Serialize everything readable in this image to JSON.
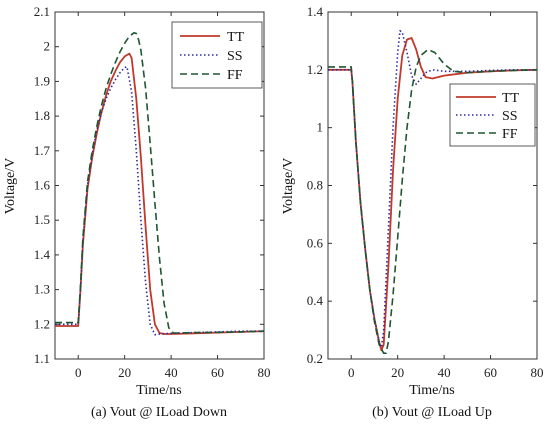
{
  "chart_data": [
    {
      "type": "line",
      "caption": "(a) Vout @ ILoad Down",
      "xlabel": "Time/ns",
      "ylabel": "Voltage/V",
      "xlim": [
        -10,
        80
      ],
      "ylim": [
        1.1,
        2.1
      ],
      "xticks": [
        0,
        20,
        40,
        60,
        80
      ],
      "yticks": [
        1.1,
        1.2,
        1.3,
        1.4,
        1.5,
        1.6,
        1.7,
        1.8,
        1.9,
        2,
        2.1
      ],
      "ytick_labels": [
        "1.1",
        "1.2",
        "1.3",
        "1.4",
        "1.5",
        "1.6",
        "1.7",
        "1.8",
        "1.9",
        "2",
        "2.1"
      ],
      "grid": false,
      "legend": {
        "position": "top-right"
      },
      "series": [
        {
          "name": "TT",
          "color": "#c0392b",
          "style": "solid",
          "x": [
            -10,
            0,
            1,
            2,
            4,
            6,
            8,
            10,
            12,
            14,
            16,
            18,
            20,
            22,
            23,
            25,
            27,
            29,
            31,
            33,
            35,
            37,
            40,
            50,
            60,
            70,
            80
          ],
          "y": [
            1.195,
            1.195,
            1.3,
            1.43,
            1.59,
            1.68,
            1.75,
            1.81,
            1.86,
            1.9,
            1.93,
            1.955,
            1.972,
            1.98,
            1.968,
            1.85,
            1.68,
            1.48,
            1.3,
            1.2,
            1.175,
            1.172,
            1.172,
            1.174,
            1.176,
            1.178,
            1.18
          ]
        },
        {
          "name": "SS",
          "color": "#2c2c9c",
          "style": "dotted",
          "x": [
            -10,
            0,
            1,
            2,
            4,
            6,
            8,
            10,
            12,
            14,
            16,
            18,
            20,
            21,
            23,
            25,
            27,
            29,
            31,
            33,
            35,
            40,
            50,
            60,
            70,
            80
          ],
          "y": [
            1.2,
            1.2,
            1.3,
            1.44,
            1.6,
            1.69,
            1.76,
            1.81,
            1.85,
            1.88,
            1.905,
            1.925,
            1.94,
            1.942,
            1.87,
            1.7,
            1.5,
            1.32,
            1.2,
            1.17,
            1.172,
            1.174,
            1.176,
            1.178,
            1.18,
            1.18
          ]
        },
        {
          "name": "FF",
          "color": "#1e5631",
          "style": "dashed",
          "x": [
            -10,
            0,
            1,
            2,
            4,
            6,
            8,
            10,
            12,
            14,
            16,
            18,
            20,
            22,
            24,
            25,
            26,
            27,
            29,
            31,
            33,
            35,
            37,
            39,
            41,
            43,
            50,
            60,
            70,
            80
          ],
          "y": [
            1.205,
            1.205,
            1.31,
            1.45,
            1.61,
            1.7,
            1.77,
            1.83,
            1.88,
            1.92,
            1.955,
            1.985,
            2.01,
            2.03,
            2.04,
            2.038,
            2.02,
            1.99,
            1.88,
            1.72,
            1.55,
            1.39,
            1.26,
            1.19,
            1.175,
            1.175,
            1.176,
            1.177,
            1.178,
            1.18
          ]
        }
      ]
    },
    {
      "type": "line",
      "caption": "(b) Vout @ ILoad Up",
      "xlabel": "Time/ns",
      "ylabel": "Voltage/V",
      "xlim": [
        -10,
        80
      ],
      "ylim": [
        0.2,
        1.4
      ],
      "xticks": [
        0,
        20,
        40,
        60,
        80
      ],
      "yticks": [
        0.2,
        0.4,
        0.6,
        0.8,
        1,
        1.2,
        1.4
      ],
      "ytick_labels": [
        "0.2",
        "0.4",
        "0.6",
        "0.8",
        "1",
        "1.2",
        "1.4"
      ],
      "grid": false,
      "legend": {
        "position": "right"
      },
      "series": [
        {
          "name": "TT",
          "color": "#c0392b",
          "style": "solid",
          "x": [
            -10,
            0,
            0.5,
            2,
            4,
            6,
            8,
            10,
            12,
            13,
            14,
            16,
            18,
            20,
            22,
            24,
            26,
            28,
            30,
            32,
            35,
            40,
            50,
            60,
            70,
            80
          ],
          "y": [
            1.2,
            1.2,
            1.16,
            0.95,
            0.74,
            0.58,
            0.44,
            0.34,
            0.26,
            0.23,
            0.25,
            0.52,
            0.85,
            1.1,
            1.25,
            1.305,
            1.31,
            1.27,
            1.21,
            1.175,
            1.17,
            1.18,
            1.19,
            1.195,
            1.198,
            1.2
          ]
        },
        {
          "name": "SS",
          "color": "#2c2c9c",
          "style": "dotted",
          "x": [
            -10,
            0,
            0.5,
            2,
            4,
            6,
            8,
            10,
            12,
            13,
            14,
            16,
            18,
            20,
            21,
            22,
            24,
            26,
            28,
            30,
            32,
            35,
            40,
            50,
            60,
            70,
            80
          ],
          "y": [
            1.2,
            1.2,
            1.16,
            0.95,
            0.74,
            0.58,
            0.44,
            0.34,
            0.26,
            0.24,
            0.3,
            0.65,
            1.0,
            1.26,
            1.335,
            1.33,
            1.26,
            1.18,
            1.15,
            1.17,
            1.19,
            1.2,
            1.195,
            1.195,
            1.198,
            1.2,
            1.2
          ]
        },
        {
          "name": "FF",
          "color": "#1e5631",
          "style": "dashed",
          "x": [
            -10,
            0,
            0.5,
            2,
            4,
            6,
            8,
            10,
            12,
            14,
            15,
            16,
            18,
            20,
            22,
            24,
            26,
            28,
            30,
            33,
            36,
            40,
            44,
            50,
            60,
            70,
            80
          ],
          "y": [
            1.21,
            1.21,
            1.16,
            0.95,
            0.74,
            0.58,
            0.44,
            0.33,
            0.25,
            0.22,
            0.22,
            0.26,
            0.42,
            0.62,
            0.82,
            1.0,
            1.13,
            1.21,
            1.25,
            1.27,
            1.26,
            1.22,
            1.195,
            1.19,
            1.195,
            1.198,
            1.2
          ]
        }
      ]
    }
  ]
}
